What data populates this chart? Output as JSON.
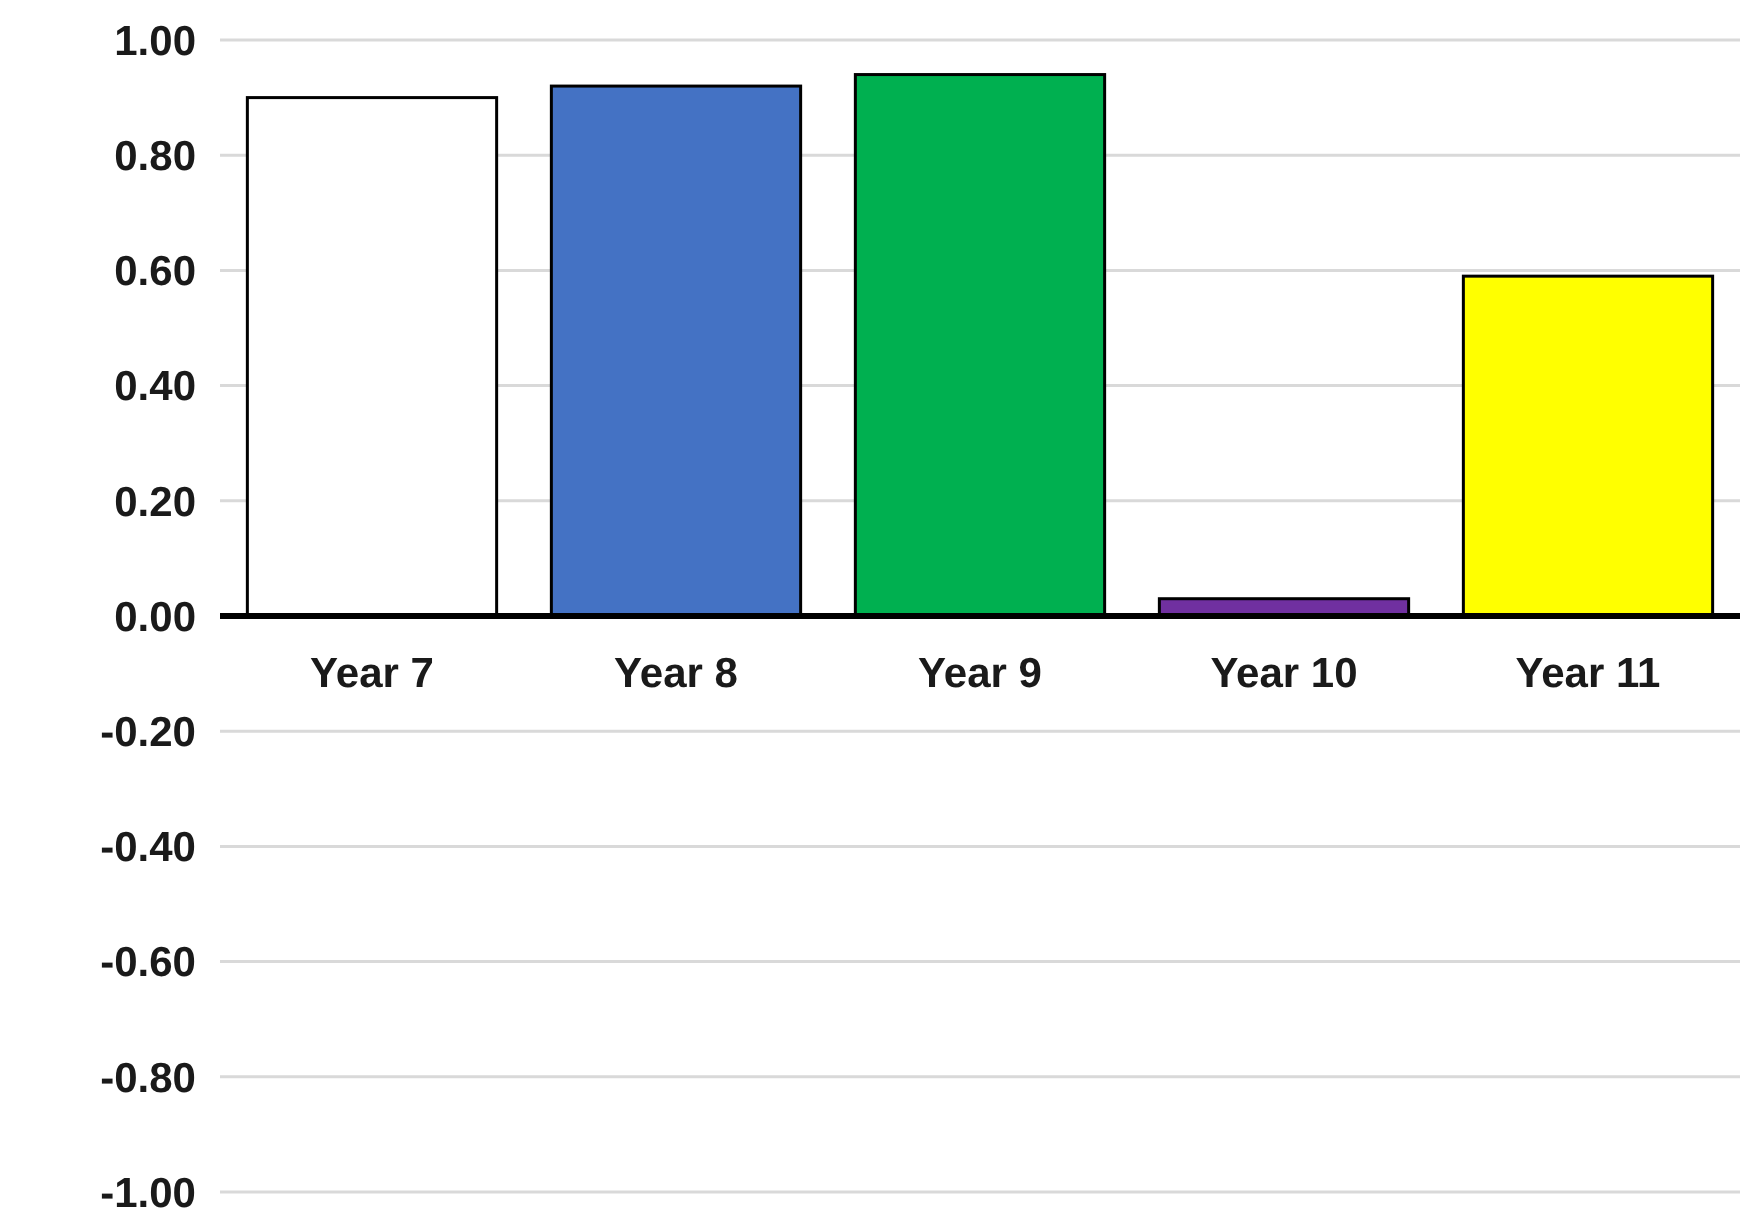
{
  "chart_data": {
    "type": "bar",
    "categories": [
      "Year 7",
      "Year 8",
      "Year 9",
      "Year 10",
      "Year 11"
    ],
    "values": [
      0.9,
      0.92,
      0.94,
      0.03,
      0.59
    ],
    "colors": [
      "#ffffff",
      "#4472c4",
      "#00b050",
      "#7030a0",
      "#ffff00"
    ],
    "ylim": [
      -1,
      1
    ],
    "yticks": [
      {
        "value": 1,
        "label": "1.00"
      },
      {
        "value": 0.8,
        "label": "0.80"
      },
      {
        "value": 0.6,
        "label": "0.60"
      },
      {
        "value": 0.4,
        "label": "0.40"
      },
      {
        "value": 0.2,
        "label": "0.20"
      },
      {
        "value": 0,
        "label": "0.00"
      },
      {
        "value": -0.2,
        "label": "-0.20"
      },
      {
        "value": -0.4,
        "label": "-0.40"
      },
      {
        "value": -0.6,
        "label": "-0.60"
      },
      {
        "value": -0.8,
        "label": "-0.80"
      },
      {
        "value": -1,
        "label": "-1.00"
      }
    ],
    "grid": "y"
  }
}
